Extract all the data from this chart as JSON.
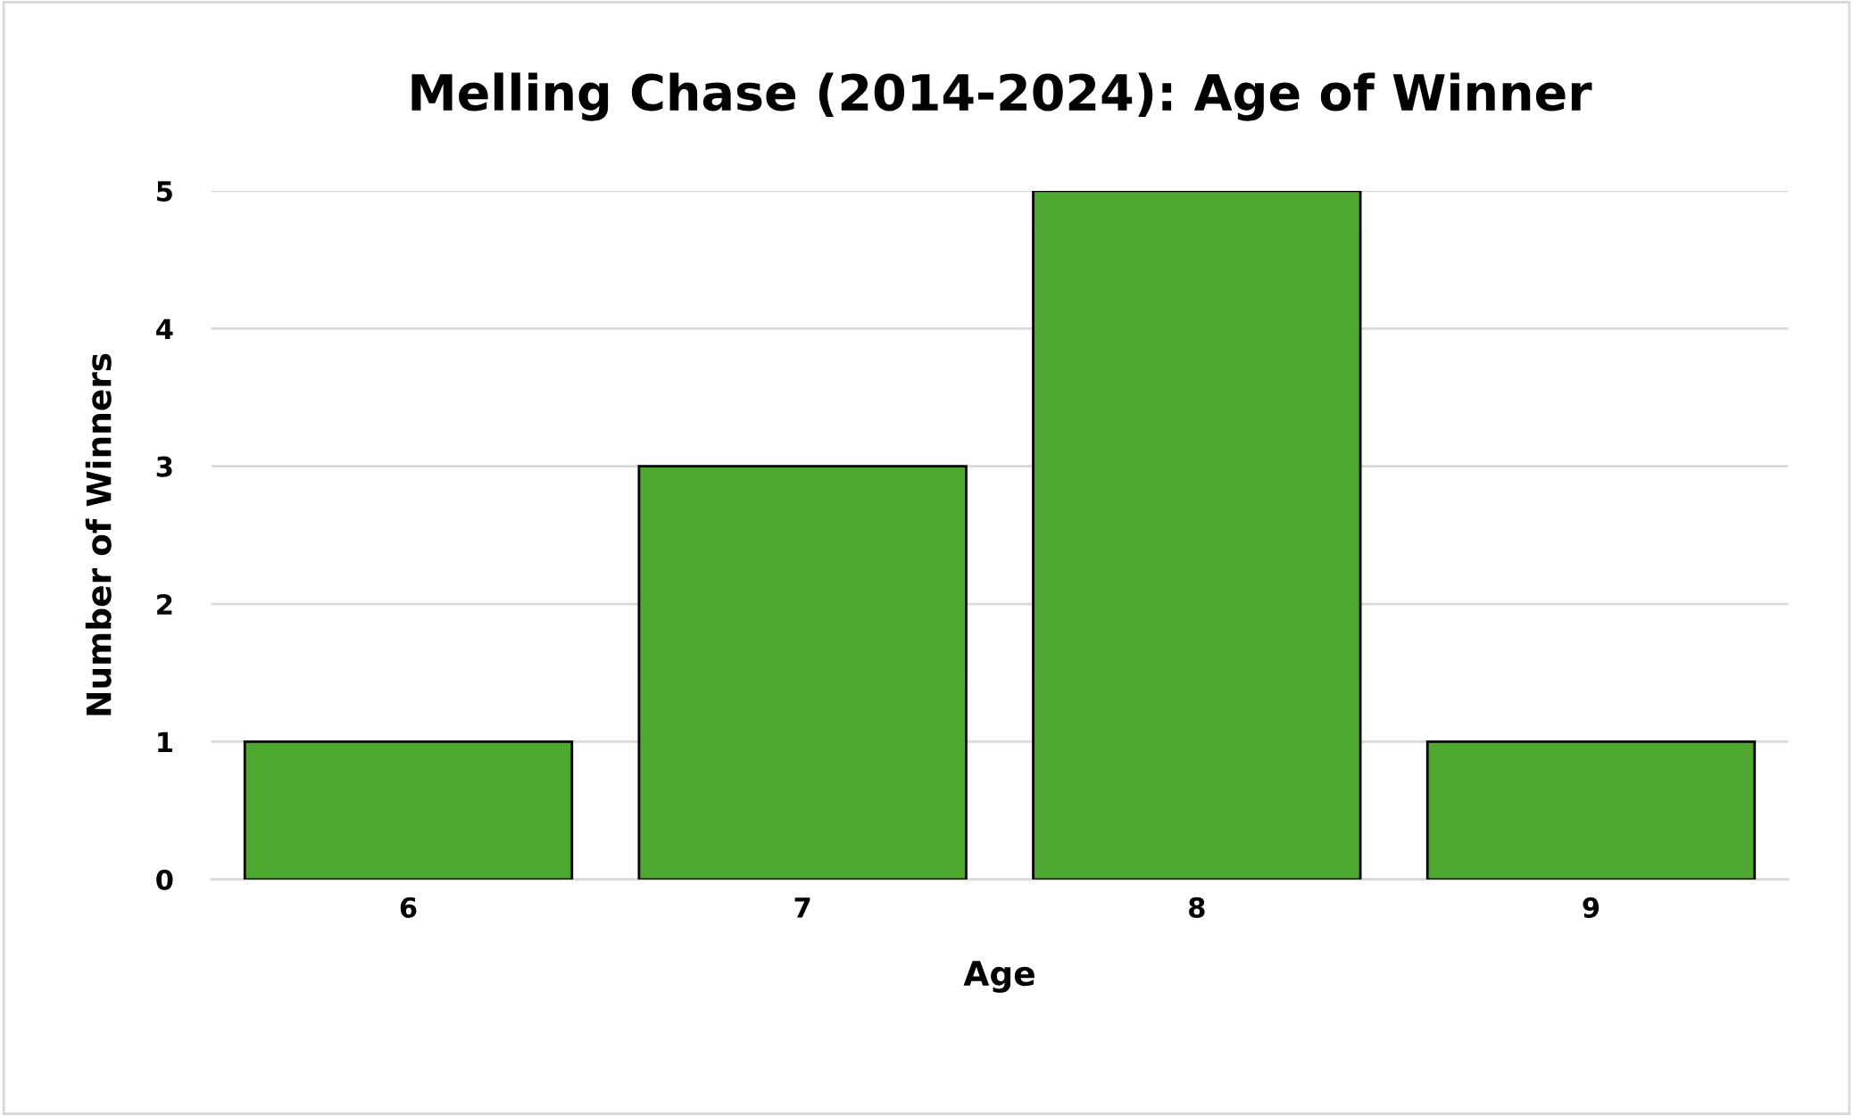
{
  "chart_data": {
    "type": "bar",
    "title": "Melling Chase (2014-2024): Age of Winner",
    "xlabel": "Age",
    "ylabel": "Number of Winners",
    "categories": [
      "6",
      "7",
      "8",
      "9"
    ],
    "values": [
      1,
      3,
      5,
      1
    ],
    "color": "#4ea72e",
    "ylim": [
      0,
      5
    ],
    "yticks": [
      0,
      1,
      2,
      3,
      4,
      5
    ],
    "grid": "y",
    "legend": false
  }
}
